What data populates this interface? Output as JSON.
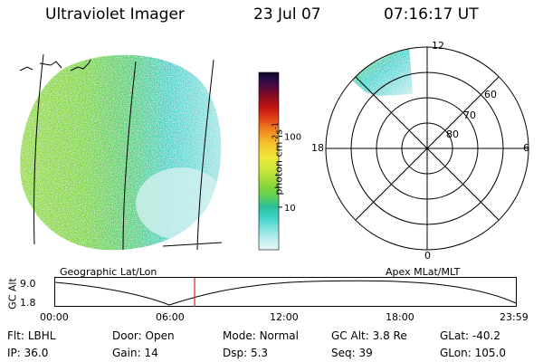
{
  "header": {
    "instrument": "Ultraviolet Imager",
    "date": "23 Jul 07",
    "time": "07:16:17 UT"
  },
  "earth_image": {
    "label": "Geographic Lat/Lon",
    "colors": {
      "green": "#7fd63a",
      "lime": "#b6e23a",
      "cyan": "#3fd3cf",
      "light": "#cfeff0"
    }
  },
  "colorbar": {
    "axis_label": "photon cm",
    "axis_sup1": "-2",
    "axis_mid": "s",
    "axis_sup2": "-1",
    "ticks": [
      {
        "label": "100",
        "value": 100
      },
      {
        "label": "10",
        "value": 10
      }
    ],
    "range": [
      2.5,
      800
    ],
    "scale": "log",
    "colors": [
      "#e8f6f6",
      "#bdeff0",
      "#7fe3dc",
      "#3fd3c9",
      "#2bbfa0",
      "#5fcf55",
      "#8fd83a",
      "#c6e43a",
      "#efe93a",
      "#f7c02e",
      "#f08a1e",
      "#e24316",
      "#c41410",
      "#8e0c1e",
      "#5a0a3a",
      "#2c0a4a",
      "#0a0820"
    ]
  },
  "polar_plot": {
    "label": "Apex MLat/MLT",
    "mlt_labels": {
      "top": "12",
      "right": "6",
      "left": "18",
      "bottom": "0"
    },
    "lat_labels": [
      "60",
      "70",
      "80"
    ]
  },
  "altitude_strip": {
    "axis_label": "GC Alt",
    "y_labels": [
      "9.0",
      "1.8"
    ],
    "ylim": [
      1.8,
      9.0
    ],
    "x_labels": [
      "00:00",
      "06:00",
      "12:00",
      "18:00",
      "23:59"
    ],
    "current_marker_color": "#e02020"
  },
  "info": {
    "row1": [
      {
        "key": "Flt:",
        "val": "LBHL"
      },
      {
        "key": "Door:",
        "val": "Open"
      },
      {
        "key": "Mode:",
        "val": "Normal"
      },
      {
        "key": "GC Alt:",
        "val": "3.8 Re"
      },
      {
        "key": "GLat:",
        "val": "-40.2"
      }
    ],
    "row2": [
      {
        "key": "IP:",
        "val": "36.0"
      },
      {
        "key": "Gain:",
        "val": "14"
      },
      {
        "key": "Dsp:",
        "val": "5.3"
      },
      {
        "key": "Seq:",
        "val": "39"
      },
      {
        "key": "GLon:",
        "val": "105.0"
      }
    ]
  }
}
